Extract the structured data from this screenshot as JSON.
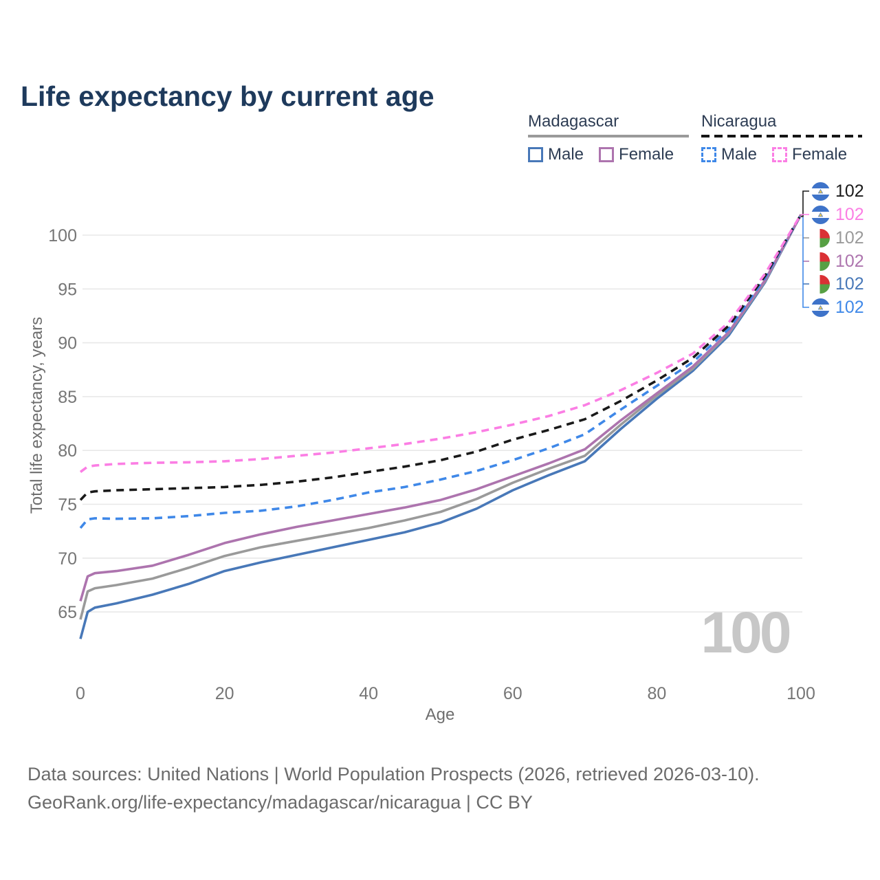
{
  "page": {
    "title": "Life expectancy by current age"
  },
  "legend": {
    "groups": [
      {
        "name": "Madagascar",
        "line_style": "solid",
        "items": [
          {
            "label": "Male",
            "color": "#4878b8"
          },
          {
            "label": "Female",
            "color": "#ad74ae"
          }
        ]
      },
      {
        "name": "Nicaragua",
        "line_style": "dashed",
        "items": [
          {
            "label": "Male",
            "color": "#3f88e8"
          },
          {
            "label": "Female",
            "color": "#fb7ee4"
          }
        ]
      }
    ]
  },
  "chart_data": {
    "type": "line",
    "title": "Life expectancy by current age",
    "xlabel": "Age",
    "ylabel": "Total life expectancy, years",
    "xlim": [
      0,
      100
    ],
    "ylim": [
      62,
      102
    ],
    "x_ticks": [
      0,
      20,
      40,
      60,
      80,
      100
    ],
    "y_ticks": [
      65,
      70,
      75,
      80,
      85,
      90,
      95,
      100
    ],
    "grid": "horizontal-only",
    "legend_position": "top-right",
    "x": [
      0,
      1,
      2,
      5,
      10,
      15,
      20,
      25,
      30,
      35,
      40,
      45,
      50,
      55,
      60,
      65,
      70,
      75,
      80,
      85,
      90,
      95,
      100
    ],
    "series": [
      {
        "name": "Nicaragua Female",
        "country": "nicaragua",
        "sex": "female",
        "color": "#fb7ee4",
        "dash": true,
        "values": [
          78.0,
          78.5,
          78.6,
          78.75,
          78.85,
          78.9,
          79.0,
          79.2,
          79.5,
          79.8,
          80.2,
          80.6,
          81.1,
          81.7,
          82.4,
          83.2,
          84.2,
          85.6,
          87.2,
          89.0,
          91.9,
          96.4,
          101.9
        ]
      },
      {
        "name": "Nicaragua",
        "country": "nicaragua",
        "sex": "both",
        "color": "#1a1a1a",
        "dash": true,
        "values": [
          75.4,
          76.1,
          76.2,
          76.3,
          76.4,
          76.5,
          76.6,
          76.8,
          77.1,
          77.5,
          78.0,
          78.5,
          79.1,
          79.9,
          81.0,
          81.9,
          82.9,
          84.6,
          86.5,
          88.6,
          91.6,
          96.2,
          101.9
        ]
      },
      {
        "name": "Nicaragua Male",
        "country": "nicaragua",
        "sex": "male",
        "color": "#3f88e8",
        "dash": true,
        "values": [
          72.8,
          73.6,
          73.7,
          73.65,
          73.7,
          73.9,
          74.2,
          74.4,
          74.8,
          75.4,
          76.1,
          76.6,
          77.3,
          78.1,
          79.1,
          80.2,
          81.5,
          83.8,
          86.0,
          88.2,
          91.3,
          96.0,
          101.9
        ]
      },
      {
        "name": "Madagascar Female",
        "country": "madagascar",
        "sex": "female",
        "color": "#ad74ae",
        "dash": false,
        "values": [
          66.0,
          68.3,
          68.6,
          68.8,
          69.3,
          70.3,
          71.4,
          72.2,
          72.9,
          73.5,
          74.1,
          74.7,
          75.4,
          76.4,
          77.6,
          78.8,
          80.1,
          82.8,
          85.3,
          87.8,
          91.0,
          95.8,
          101.9
        ]
      },
      {
        "name": "Madagascar",
        "country": "madagascar",
        "sex": "both",
        "color": "#9a9a9a",
        "dash": false,
        "values": [
          64.3,
          66.9,
          67.2,
          67.5,
          68.1,
          69.1,
          70.2,
          71.0,
          71.6,
          72.2,
          72.8,
          73.5,
          74.3,
          75.5,
          77.0,
          78.3,
          79.5,
          82.4,
          85.1,
          87.6,
          90.9,
          95.7,
          101.9
        ]
      },
      {
        "name": "Madagascar Male",
        "country": "madagascar",
        "sex": "male",
        "color": "#4878b8",
        "dash": false,
        "values": [
          62.5,
          65.0,
          65.4,
          65.8,
          66.6,
          67.6,
          68.8,
          69.6,
          70.3,
          71.0,
          71.7,
          72.4,
          73.3,
          74.6,
          76.3,
          77.7,
          79.0,
          82.0,
          84.8,
          87.4,
          90.7,
          95.6,
          101.9
        ]
      }
    ]
  },
  "end_labels": {
    "rows": [
      {
        "flag": "nicaragua",
        "value": "102",
        "color": "#1a1a1a",
        "series": "Nicaragua"
      },
      {
        "flag": "nicaragua",
        "value": "102",
        "color": "#fb7ee4",
        "series": "Nicaragua Female"
      },
      {
        "flag": "madagascar",
        "value": "102",
        "color": "#9a9a9a",
        "series": "Madagascar"
      },
      {
        "flag": "madagascar",
        "value": "102",
        "color": "#ad74ae",
        "series": "Madagascar Female"
      },
      {
        "flag": "madagascar",
        "value": "102",
        "color": "#4878b8",
        "series": "Madagascar Male"
      },
      {
        "flag": "nicaragua",
        "value": "102",
        "color": "#3f88e8",
        "series": "Nicaragua Male"
      }
    ]
  },
  "watermark": "100",
  "footer": {
    "line1": "Data sources: United Nations | World Population Prospects (2026, retrieved 2026-03-10).",
    "line2": "GeoRank.org/life-expectancy/madagascar/nicaragua | CC BY"
  }
}
